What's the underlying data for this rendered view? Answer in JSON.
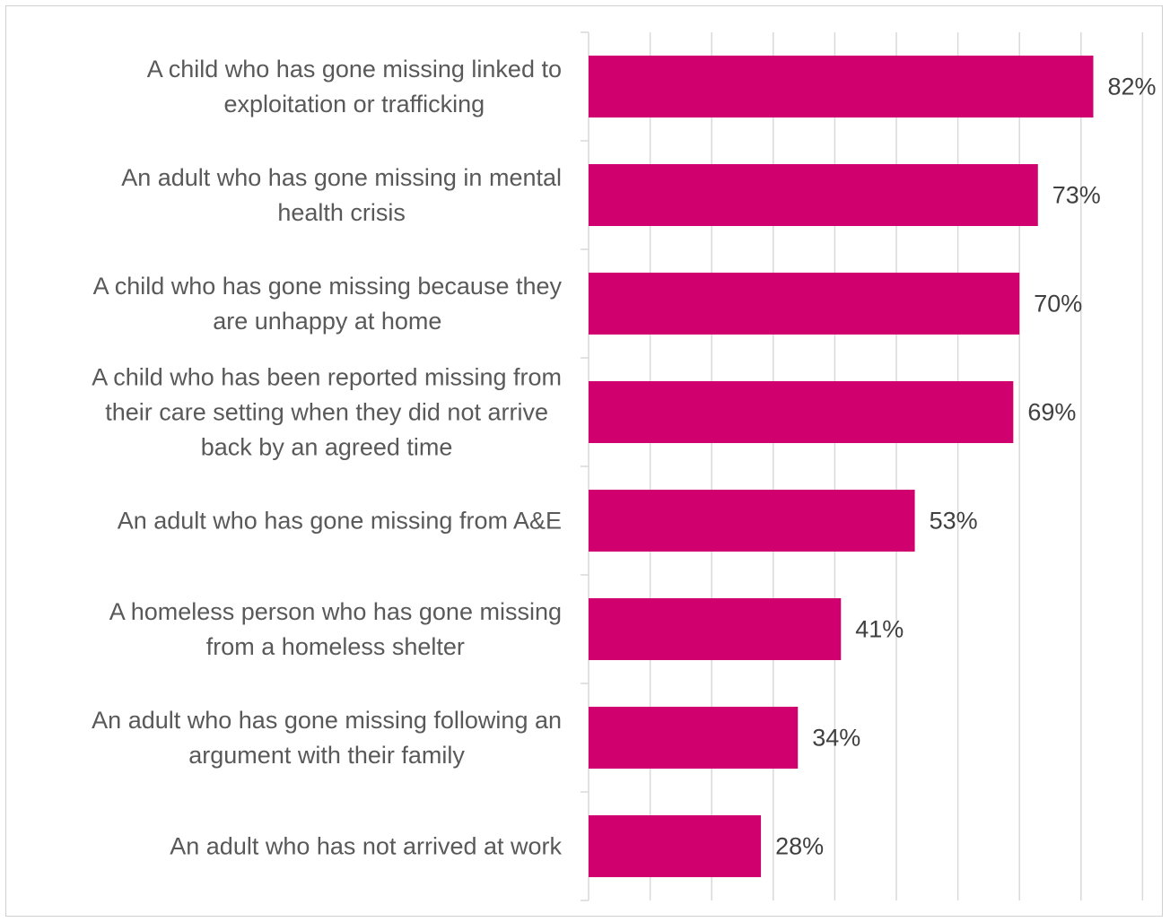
{
  "chart_data": {
    "type": "bar",
    "orientation": "horizontal",
    "categories": [
      [
        "A child who has gone missing linked to",
        "exploitation or trafficking"
      ],
      [
        "An adult who has gone missing in mental",
        "health crisis"
      ],
      [
        "A child who has gone missing because they",
        "are unhappy at home"
      ],
      [
        "A child who has been reported missing from",
        "their care setting when they did not arrive",
        "back by an agreed time"
      ],
      [
        "An adult who has gone missing from A&E"
      ],
      [
        "A homeless person who has gone missing",
        "from a homeless shelter"
      ],
      [
        "An adult who has gone missing following an",
        "argument with their family"
      ],
      [
        "An adult who has not arrived at work"
      ]
    ],
    "values": [
      82,
      73,
      70,
      69,
      53,
      41,
      34,
      28
    ],
    "value_labels": [
      "82%",
      "73%",
      "70%",
      "69%",
      "53%",
      "41%",
      "34%",
      "28%"
    ],
    "xlim": [
      0,
      90
    ],
    "x_gridline_step": 10,
    "grid": true,
    "bar_color": "#D0006F",
    "title": "",
    "xlabel": "",
    "ylabel": ""
  }
}
